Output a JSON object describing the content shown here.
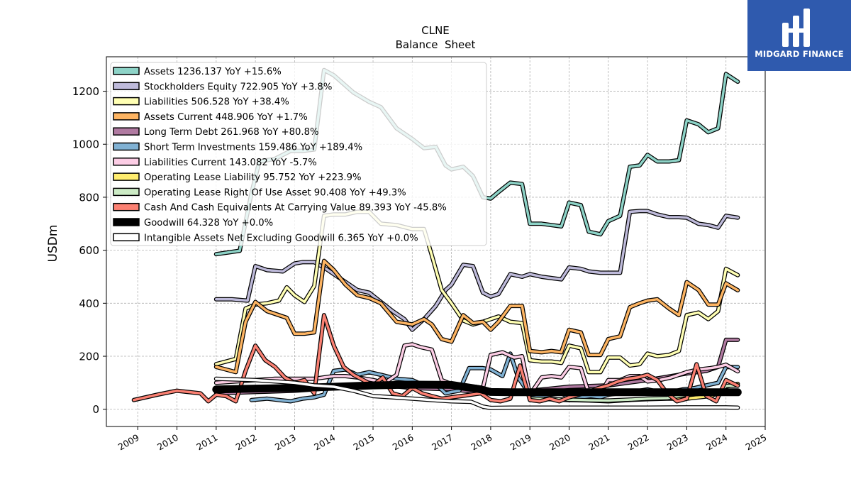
{
  "chart_data": {
    "type": "line",
    "title": "CLNE",
    "subtitle": "Balance  Sheet",
    "ylabel": "USDm",
    "xlabel": "",
    "xlim": [
      2008.2,
      2025.0
    ],
    "ylim": [
      -65,
      1330
    ],
    "grid": true,
    "legend_position": "top-left",
    "yticks": [
      0,
      200,
      400,
      600,
      800,
      1000,
      1200
    ],
    "xticks": [
      "2009",
      "2010",
      "2011",
      "2012",
      "2013",
      "2014",
      "2015",
      "2016",
      "2017",
      "2018",
      "2019",
      "2020",
      "2021",
      "2022",
      "2023",
      "2024",
      "2025"
    ],
    "series": [
      {
        "name": "Assets  1236.137 YoY +15.6%",
        "color": "#8dd3c7",
        "x": [
          2011.0,
          2011.6,
          2011.9,
          2012.1,
          2012.5,
          2012.9,
          2013.2,
          2013.5,
          2013.75,
          2014.0,
          2014.5,
          2014.9,
          2015.2,
          2015.6,
          2016.0,
          2016.3,
          2016.6,
          2016.85,
          2017.0,
          2017.3,
          2017.55,
          2017.8,
          2018.0,
          2018.2,
          2018.5,
          2018.8,
          2019.0,
          2019.3,
          2019.55,
          2019.8,
          2020.0,
          2020.3,
          2020.5,
          2020.8,
          2021.0,
          2021.3,
          2021.55,
          2021.8,
          2022.0,
          2022.25,
          2022.55,
          2022.8,
          2023.0,
          2023.3,
          2023.55,
          2023.8,
          2024.0,
          2024.3
        ],
        "y": [
          585,
          598,
          815,
          935,
          945,
          975,
          975,
          980,
          1280,
          1260,
          1195,
          1160,
          1140,
          1060,
          1020,
          985,
          990,
          920,
          905,
          915,
          880,
          800,
          795,
          820,
          855,
          850,
          700,
          700,
          695,
          690,
          780,
          770,
          670,
          660,
          710,
          730,
          915,
          920,
          960,
          935,
          935,
          940,
          1090,
          1075,
          1045,
          1060,
          1265,
          1236
        ]
      },
      {
        "name": "Stockholders Equity  722.905 YoY +3.8%",
        "color": "#bebada",
        "x": [
          2011.0,
          2011.4,
          2011.8,
          2012.0,
          2012.3,
          2012.7,
          2013.0,
          2013.2,
          2013.5,
          2013.8,
          2014.0,
          2014.3,
          2014.6,
          2014.9,
          2015.2,
          2015.5,
          2015.8,
          2016.0,
          2016.3,
          2016.6,
          2016.85,
          2017.0,
          2017.3,
          2017.55,
          2017.8,
          2018.0,
          2018.2,
          2018.5,
          2018.8,
          2019.0,
          2019.3,
          2019.55,
          2019.8,
          2020.0,
          2020.3,
          2020.5,
          2020.8,
          2021.0,
          2021.3,
          2021.55,
          2021.8,
          2022.0,
          2022.25,
          2022.55,
          2022.8,
          2023.0,
          2023.3,
          2023.55,
          2023.8,
          2024.0,
          2024.3
        ],
        "y": [
          415,
          415,
          410,
          540,
          525,
          520,
          550,
          555,
          555,
          530,
          510,
          480,
          450,
          440,
          405,
          370,
          340,
          300,
          340,
          390,
          450,
          470,
          545,
          540,
          440,
          425,
          435,
          510,
          500,
          510,
          500,
          495,
          490,
          535,
          530,
          520,
          515,
          515,
          515,
          745,
          748,
          748,
          735,
          725,
          725,
          723,
          700,
          695,
          685,
          730,
          723
        ]
      },
      {
        "name": "Liabilities  506.528 YoY +38.4%",
        "color": "#ffffb3",
        "x": [
          2011.0,
          2011.5,
          2011.75,
          2012.0,
          2012.3,
          2012.6,
          2012.8,
          2013.0,
          2013.25,
          2013.5,
          2013.75,
          2014.0,
          2014.3,
          2014.6,
          2014.9,
          2015.2,
          2015.6,
          2016.0,
          2016.3,
          2016.5,
          2016.75,
          2017.0,
          2017.3,
          2017.55,
          2017.8,
          2018.0,
          2018.2,
          2018.5,
          2018.8,
          2019.0,
          2019.3,
          2019.55,
          2019.8,
          2020.0,
          2020.3,
          2020.5,
          2020.8,
          2021.0,
          2021.3,
          2021.55,
          2021.8,
          2022.0,
          2022.25,
          2022.55,
          2022.8,
          2023.0,
          2023.3,
          2023.55,
          2023.8,
          2024.0,
          2024.3
        ],
        "y": [
          170,
          190,
          380,
          395,
          400,
          410,
          460,
          430,
          405,
          465,
          730,
          735,
          735,
          745,
          745,
          700,
          695,
          680,
          680,
          580,
          450,
          400,
          335,
          320,
          330,
          340,
          350,
          330,
          325,
          185,
          180,
          180,
          175,
          240,
          230,
          140,
          140,
          195,
          195,
          165,
          170,
          210,
          200,
          205,
          220,
          355,
          365,
          340,
          370,
          530,
          506
        ]
      },
      {
        "name": "Assets Current  448.906 YoY +1.7%",
        "color": "#fdb462",
        "x": [
          2011.0,
          2011.5,
          2011.75,
          2012.0,
          2012.3,
          2012.6,
          2012.8,
          2013.0,
          2013.25,
          2013.5,
          2013.75,
          2014.0,
          2014.3,
          2014.6,
          2014.9,
          2015.2,
          2015.6,
          2016.0,
          2016.3,
          2016.5,
          2016.75,
          2017.0,
          2017.3,
          2017.55,
          2017.8,
          2018.0,
          2018.2,
          2018.5,
          2018.8,
          2019.0,
          2019.3,
          2019.55,
          2019.8,
          2020.0,
          2020.3,
          2020.5,
          2020.8,
          2021.0,
          2021.3,
          2021.55,
          2021.8,
          2022.0,
          2022.25,
          2022.55,
          2022.8,
          2023.0,
          2023.3,
          2023.55,
          2023.8,
          2024.0,
          2024.3
        ],
        "y": [
          160,
          140,
          330,
          405,
          370,
          355,
          345,
          285,
          285,
          290,
          560,
          525,
          470,
          430,
          420,
          400,
          330,
          320,
          340,
          320,
          265,
          255,
          355,
          325,
          330,
          300,
          330,
          390,
          390,
          220,
          215,
          220,
          215,
          300,
          290,
          205,
          205,
          265,
          275,
          385,
          400,
          410,
          415,
          380,
          355,
          480,
          450,
          395,
          395,
          475,
          449
        ]
      },
      {
        "name": "Long Term Debt  261.968 YoY +80.8%",
        "color": "#b07aa1",
        "x": [
          2011.0,
          2012.0,
          2013.0,
          2014.0,
          2015.0,
          2016.0,
          2017.0,
          2018.0,
          2019.0,
          2020.0,
          2021.0,
          2022.0,
          2023.0,
          2023.5,
          2023.8,
          2024.0,
          2024.3
        ],
        "y": [
          60,
          65,
          70,
          80,
          95,
          80,
          75,
          60,
          70,
          85,
          90,
          110,
          135,
          145,
          160,
          262,
          262
        ]
      },
      {
        "name": "Short Term Investments  159.486 YoY +189.4%",
        "color": "#80b1d3",
        "x": [
          2011.9,
          2012.3,
          2012.6,
          2012.9,
          2013.2,
          2013.5,
          2013.75,
          2014.0,
          2014.3,
          2014.6,
          2014.9,
          2015.2,
          2015.6,
          2016.0,
          2016.3,
          2016.6,
          2016.85,
          2017.0,
          2017.2,
          2017.45,
          2017.8,
          2018.0,
          2018.3,
          2018.5,
          2018.7,
          2019.0,
          2019.3,
          2019.55,
          2019.8,
          2020.0,
          2020.3,
          2020.55,
          2020.8,
          2021.0,
          2021.3,
          2021.55,
          2021.8,
          2022.0,
          2022.3,
          2022.6,
          2022.9,
          2023.2,
          2023.5,
          2023.8,
          2024.0,
          2024.3
        ],
        "y": [
          35,
          40,
          35,
          30,
          40,
          45,
          55,
          145,
          150,
          130,
          140,
          130,
          115,
          110,
          90,
          95,
          60,
          65,
          70,
          155,
          155,
          150,
          125,
          210,
          120,
          55,
          50,
          55,
          60,
          45,
          45,
          50,
          45,
          55,
          60,
          60,
          70,
          75,
          65,
          65,
          75,
          80,
          90,
          100,
          159,
          159
        ]
      },
      {
        "name": "Liabilities Current  143.082 YoY -5.7%",
        "color": "#fccde5",
        "x": [
          2011.0,
          2011.5,
          2012.0,
          2012.5,
          2013.0,
          2013.5,
          2013.75,
          2014.0,
          2014.3,
          2014.6,
          2015.0,
          2015.3,
          2015.6,
          2015.8,
          2016.0,
          2016.2,
          2016.5,
          2016.75,
          2017.0,
          2017.3,
          2017.6,
          2017.8,
          2018.0,
          2018.3,
          2018.6,
          2018.8,
          2019.0,
          2019.3,
          2019.55,
          2019.8,
          2020.0,
          2020.3,
          2020.5,
          2020.8,
          2021.0,
          2021.3,
          2021.55,
          2021.8,
          2022.0,
          2022.3,
          2022.6,
          2022.9,
          2023.0,
          2023.3,
          2023.6,
          2023.8,
          2024.0,
          2024.3
        ],
        "y": [
          100,
          105,
          110,
          115,
          115,
          115,
          120,
          125,
          125,
          120,
          110,
          100,
          130,
          240,
          245,
          235,
          225,
          110,
          95,
          80,
          85,
          80,
          205,
          215,
          195,
          200,
          55,
          120,
          125,
          120,
          160,
          155,
          60,
          60,
          110,
          110,
          125,
          125,
          105,
          110,
          120,
          135,
          140,
          150,
          155,
          160,
          168,
          143
        ]
      },
      {
        "name": "Operating Lease Liability  95.752 YoY +223.9%",
        "color": "#ffed6f",
        "x": [
          2019.0,
          2019.5,
          2020.0,
          2020.5,
          2021.0,
          2021.5,
          2022.0,
          2022.5,
          2023.0,
          2023.3,
          2023.6,
          2023.8,
          2024.0,
          2024.3
        ],
        "y": [
          40,
          38,
          35,
          33,
          30,
          35,
          38,
          40,
          40,
          45,
          50,
          60,
          85,
          96
        ]
      },
      {
        "name": "Operating Lease Right Of Use Asset  90.408 YoY +49.3%",
        "color": "#ccebc5",
        "x": [
          2019.0,
          2019.5,
          2020.0,
          2020.5,
          2021.0,
          2021.5,
          2022.0,
          2022.5,
          2023.0,
          2023.3,
          2023.6,
          2023.8,
          2024.0,
          2024.3
        ],
        "y": [
          40,
          38,
          36,
          34,
          33,
          36,
          40,
          42,
          55,
          58,
          60,
          62,
          88,
          90
        ]
      },
      {
        "name": "Cash And Cash Equivalents At Carrying Value  89.393 YoY -45.8%",
        "color": "#fb8072",
        "x": [
          2008.9,
          2009.5,
          2010.0,
          2010.6,
          2010.8,
          2011.0,
          2011.25,
          2011.5,
          2011.75,
          2012.0,
          2012.25,
          2012.5,
          2012.75,
          2013.0,
          2013.25,
          2013.5,
          2013.75,
          2014.0,
          2014.25,
          2014.5,
          2014.75,
          2015.0,
          2015.25,
          2015.5,
          2015.75,
          2016.0,
          2016.25,
          2016.5,
          2016.75,
          2017.0,
          2017.25,
          2017.5,
          2017.75,
          2018.0,
          2018.25,
          2018.5,
          2018.75,
          2019.0,
          2019.25,
          2019.5,
          2019.75,
          2020.0,
          2020.25,
          2020.5,
          2020.75,
          2021.0,
          2021.25,
          2021.5,
          2021.75,
          2022.0,
          2022.25,
          2022.5,
          2022.75,
          2023.0,
          2023.25,
          2023.5,
          2023.75,
          2024.0,
          2024.3
        ],
        "y": [
          35,
          55,
          70,
          60,
          30,
          55,
          50,
          30,
          145,
          240,
          185,
          160,
          120,
          100,
          110,
          60,
          355,
          240,
          160,
          130,
          110,
          90,
          120,
          60,
          50,
          80,
          60,
          50,
          40,
          45,
          50,
          55,
          60,
          35,
          30,
          40,
          165,
          35,
          30,
          40,
          30,
          45,
          55,
          65,
          80,
          90,
          105,
          115,
          120,
          130,
          110,
          60,
          30,
          40,
          170,
          50,
          30,
          110,
          89
        ]
      },
      {
        "name": "Goodwill  64.328 YoY +0.0%",
        "color": "#000000",
        "x": [
          2011.0,
          2012.0,
          2013.0,
          2014.0,
          2015.0,
          2016.0,
          2017.0,
          2017.75,
          2018.0,
          2018.5,
          2019.0,
          2020.0,
          2021.0,
          2022.0,
          2023.0,
          2024.0,
          2024.3
        ],
        "y": [
          75,
          78,
          80,
          85,
          90,
          93,
          92,
          75,
          65,
          64,
          64,
          64,
          64,
          64,
          64,
          64,
          64
        ]
      },
      {
        "name": "Intangible Assets Net Excluding Goodwill  6.365 YoY +0.0%",
        "color": "#ffffff",
        "x": [
          2011.0,
          2012.0,
          2013.0,
          2013.5,
          2014.0,
          2014.5,
          2015.0,
          2015.5,
          2016.0,
          2016.5,
          2017.0,
          2017.5,
          2017.8,
          2018.0,
          2018.5,
          2019.0,
          2020.0,
          2021.0,
          2022.0,
          2023.0,
          2024.0,
          2024.3
        ],
        "y": [
          115,
          110,
          100,
          90,
          85,
          70,
          50,
          45,
          40,
          35,
          30,
          28,
          10,
          5,
          6,
          6,
          6,
          6,
          6,
          7,
          7,
          6
        ]
      }
    ]
  },
  "brand": {
    "name": "MIDGARD FINANCE",
    "logo_icon": "midgard-logo-icon",
    "background": "#2f5aae"
  }
}
